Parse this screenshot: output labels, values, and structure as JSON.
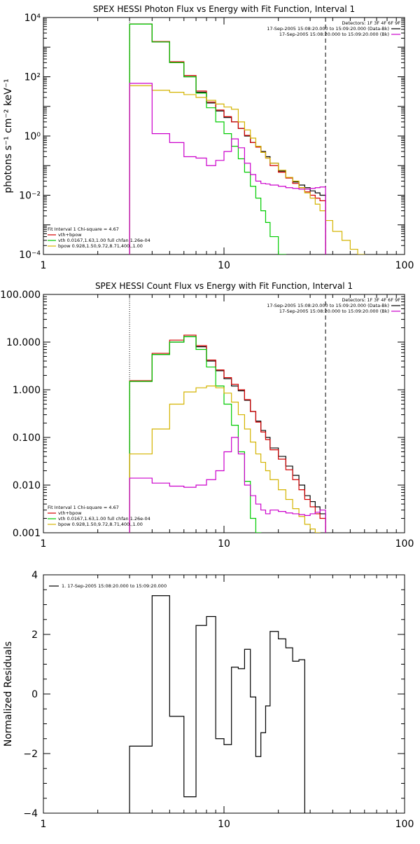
{
  "colors": {
    "background": "#ffffff",
    "axis": "#000000",
    "data": "#000000",
    "total": "#d40000",
    "vth": "#00cc00",
    "bpow": "#d4b400",
    "background_spectrum": "#cc00cc"
  },
  "chart_data": [
    {
      "type": "line",
      "title": "SPEX HESSI Photon Flux vs Energy with Fit Function, Interval 1",
      "xlabel": "",
      "ylabel": "photons s⁻¹ cm⁻² keV⁻¹",
      "xscale": "log",
      "yscale": "log",
      "xlim": [
        1,
        100
      ],
      "ylim": [
        0.0001,
        10000
      ],
      "x_tick_labels": [
        "1",
        "10",
        "100"
      ],
      "y_tick_labels": [
        "10⁻⁴",
        "10⁻²",
        "10⁰",
        "10²",
        "10⁴"
      ],
      "fit_range_low_keV": 3.0,
      "fit_range_high_keV": 36.5,
      "detectors_label": "Detectors: 1F 3F 4F 6F 9F",
      "legend_top": [
        {
          "text": "17-Sep-2005 15:08:20.000 to 15:09:20.000 (Data-Bk)",
          "color_key": "data"
        },
        {
          "text": "17-Sep-2005 15:08:20.000 to 15:09:20.000 (Bk)",
          "color_key": "background_spectrum"
        }
      ],
      "fit_header": "Fit Interval 1    Chi-square = 4.67",
      "legend_bottom": [
        {
          "text": "vth+bpow",
          "color_key": "total"
        },
        {
          "text": "vth 0.0167,1.63,1.00  full chfan 1.26e-04",
          "color_key": "vth"
        },
        {
          "text": "bpow 0.928,1.50,9.72,8.71,400.,1.00",
          "color_key": "bpow"
        }
      ],
      "bin_edges_keV": [
        3.0,
        4.0,
        5.0,
        6.0,
        7.0,
        8.0,
        9.0,
        10.0,
        11.0,
        12.0,
        13.0,
        14.0,
        15.0,
        16.0,
        17.0,
        18.0,
        20.0,
        22.0,
        24.0,
        26.0,
        28.0,
        30.0,
        32.0,
        34.0,
        36.5,
        40.0,
        45.0,
        50.0,
        55.0,
        60.0
      ],
      "series": [
        {
          "color_key": "data",
          "values": [
            6000,
            1500,
            300,
            100,
            30,
            13,
            7,
            4.2,
            3.0,
            1.8,
            1.0,
            0.6,
            0.45,
            0.3,
            0.2,
            0.12,
            0.065,
            0.04,
            0.028,
            0.022,
            0.018,
            0.014,
            0.012,
            0.01
          ]
        },
        {
          "color_key": "total",
          "values": [
            6000,
            1550,
            320,
            110,
            33,
            14,
            7.5,
            4.5,
            3.0,
            1.8,
            1.05,
            0.6,
            0.42,
            0.28,
            0.18,
            0.1,
            0.06,
            0.038,
            0.025,
            0.018,
            0.013,
            0.01,
            0.008,
            0.0065
          ]
        },
        {
          "color_key": "vth",
          "values": [
            6000,
            1500,
            300,
            100,
            28,
            9,
            3.0,
            1.2,
            0.45,
            0.17,
            0.06,
            0.02,
            0.008,
            0.003,
            0.0012,
            0.0004,
            0.0001
          ]
        },
        {
          "color_key": "bpow",
          "values": [
            50,
            35,
            30,
            25,
            20,
            16,
            12,
            9.5,
            8,
            3.0,
            1.6,
            0.85,
            0.45,
            0.28,
            0.18,
            0.12,
            0.07,
            0.04,
            0.03,
            0.018,
            0.012,
            0.008,
            0.005,
            0.003,
            0.0014,
            0.0006,
            0.0003,
            0.00015,
            0.0001
          ]
        },
        {
          "color_key": "background_spectrum",
          "values": [
            60,
            1.2,
            0.6,
            0.2,
            0.18,
            0.1,
            0.15,
            0.3,
            0.8,
            0.4,
            0.12,
            0.05,
            0.03,
            0.025,
            0.024,
            0.022,
            0.02,
            0.018,
            0.017,
            0.016,
            0.016,
            0.017,
            0.018,
            0.019
          ]
        }
      ]
    },
    {
      "type": "line",
      "title": "SPEX HESSI Count Flux vs Energy with Fit Function, Interval 1",
      "xlabel": "",
      "ylabel": "",
      "xscale": "log",
      "yscale": "log",
      "xlim": [
        1,
        100
      ],
      "ylim": [
        0.001,
        100
      ],
      "x_tick_labels": [
        "1",
        "10",
        "100"
      ],
      "y_tick_labels": [
        "0.001",
        "0.010",
        "0.100",
        "1.000",
        "10.000",
        "100.000"
      ],
      "fit_range_low_keV": 3.0,
      "fit_range_high_keV": 36.5,
      "detectors_label": "Detectors: 1F 3F 4F 6F 9F",
      "legend_top": [
        {
          "text": "17-Sep-2005 15:08:20.000 to 15:09:20.000 (Data-Bk)",
          "color_key": "data"
        },
        {
          "text": "17-Sep-2005 15:08:20.000 to 15:09:20.000 (Bk)",
          "color_key": "background_spectrum"
        }
      ],
      "fit_header": "Fit Interval 1    Chi-square = 4.67",
      "legend_bottom": [
        {
          "text": "vth+bpow",
          "color_key": "total"
        },
        {
          "text": "vth 0.0167,1.63,1.00  full chfan 1.26e-04",
          "color_key": "vth"
        },
        {
          "text": "bpow 0.928,1.50,9.72,8.71,400.,1.00",
          "color_key": "bpow"
        }
      ],
      "bin_edges_keV": [
        3.0,
        4.0,
        5.0,
        6.0,
        7.0,
        8.0,
        9.0,
        10.0,
        11.0,
        12.0,
        13.0,
        14.0,
        15.0,
        16.0,
        17.0,
        18.0,
        20.0,
        22.0,
        24.0,
        26.0,
        28.0,
        30.0,
        32.0,
        34.0,
        36.5
      ],
      "series": [
        {
          "color_key": "data",
          "values": [
            1.5,
            5.5,
            10,
            13,
            8,
            4,
            2.5,
            1.7,
            1.2,
            0.95,
            0.6,
            0.35,
            0.22,
            0.14,
            0.1,
            0.06,
            0.04,
            0.025,
            0.016,
            0.01,
            0.006,
            0.0045,
            0.0035,
            0.0025
          ]
        },
        {
          "color_key": "total",
          "values": [
            1.55,
            5.8,
            11,
            14,
            8.4,
            4.2,
            2.6,
            1.8,
            1.3,
            1.0,
            0.62,
            0.35,
            0.21,
            0.13,
            0.09,
            0.055,
            0.035,
            0.021,
            0.013,
            0.008,
            0.005,
            0.0035,
            0.0025,
            0.002
          ]
        },
        {
          "color_key": "vth",
          "values": [
            1.5,
            5.5,
            10,
            13,
            7,
            3.0,
            1.2,
            0.5,
            0.18,
            0.05,
            0.012,
            0.002,
            0.001
          ]
        },
        {
          "color_key": "bpow",
          "values": [
            0.045,
            0.15,
            0.5,
            0.9,
            1.1,
            1.2,
            1.1,
            0.85,
            0.55,
            0.3,
            0.15,
            0.08,
            0.045,
            0.03,
            0.02,
            0.013,
            0.008,
            0.005,
            0.0032,
            0.0022,
            0.0015,
            0.0012,
            0.001
          ]
        },
        {
          "color_key": "background_spectrum",
          "values": [
            0.014,
            0.011,
            0.0095,
            0.009,
            0.01,
            0.013,
            0.02,
            0.05,
            0.1,
            0.045,
            0.01,
            0.006,
            0.004,
            0.003,
            0.0025,
            0.003,
            0.0028,
            0.0026,
            0.0025,
            0.0024,
            0.0023,
            0.0025,
            0.0027,
            0.003
          ]
        }
      ]
    },
    {
      "type": "line",
      "title": "",
      "xlabel": "",
      "ylabel": "Normalized Residuals",
      "xscale": "log",
      "yscale": "linear",
      "xlim": [
        1,
        100
      ],
      "ylim": [
        -4,
        4
      ],
      "x_tick_labels": [
        "1",
        "10",
        "100"
      ],
      "y_tick_labels": [
        "−4",
        "−2",
        "0",
        "2",
        "4"
      ],
      "legend": "1. 17-Sep-2005 15:08:20.000 to 15:09:20.000",
      "bin_edges_keV": [
        3.0,
        4.0,
        5.0,
        6.0,
        7.0,
        8.0,
        9.0,
        10.0,
        11.0,
        12.0,
        13.0,
        14.0,
        15.0,
        16.0,
        17.0,
        18.0,
        20.0,
        22.0,
        24.0,
        26.0,
        28.0,
        30.0,
        32.0,
        34.0,
        36.5
      ],
      "series": [
        {
          "color_key": "data",
          "values": [
            -1.75,
            3.3,
            -0.75,
            -3.45,
            2.3,
            2.6,
            -1.5,
            -1.7,
            0.9,
            0.85,
            1.5,
            -0.1,
            -2.1,
            -1.3,
            -0.4,
            2.1,
            1.85,
            1.55,
            1.1,
            1.15
          ]
        }
      ]
    }
  ]
}
